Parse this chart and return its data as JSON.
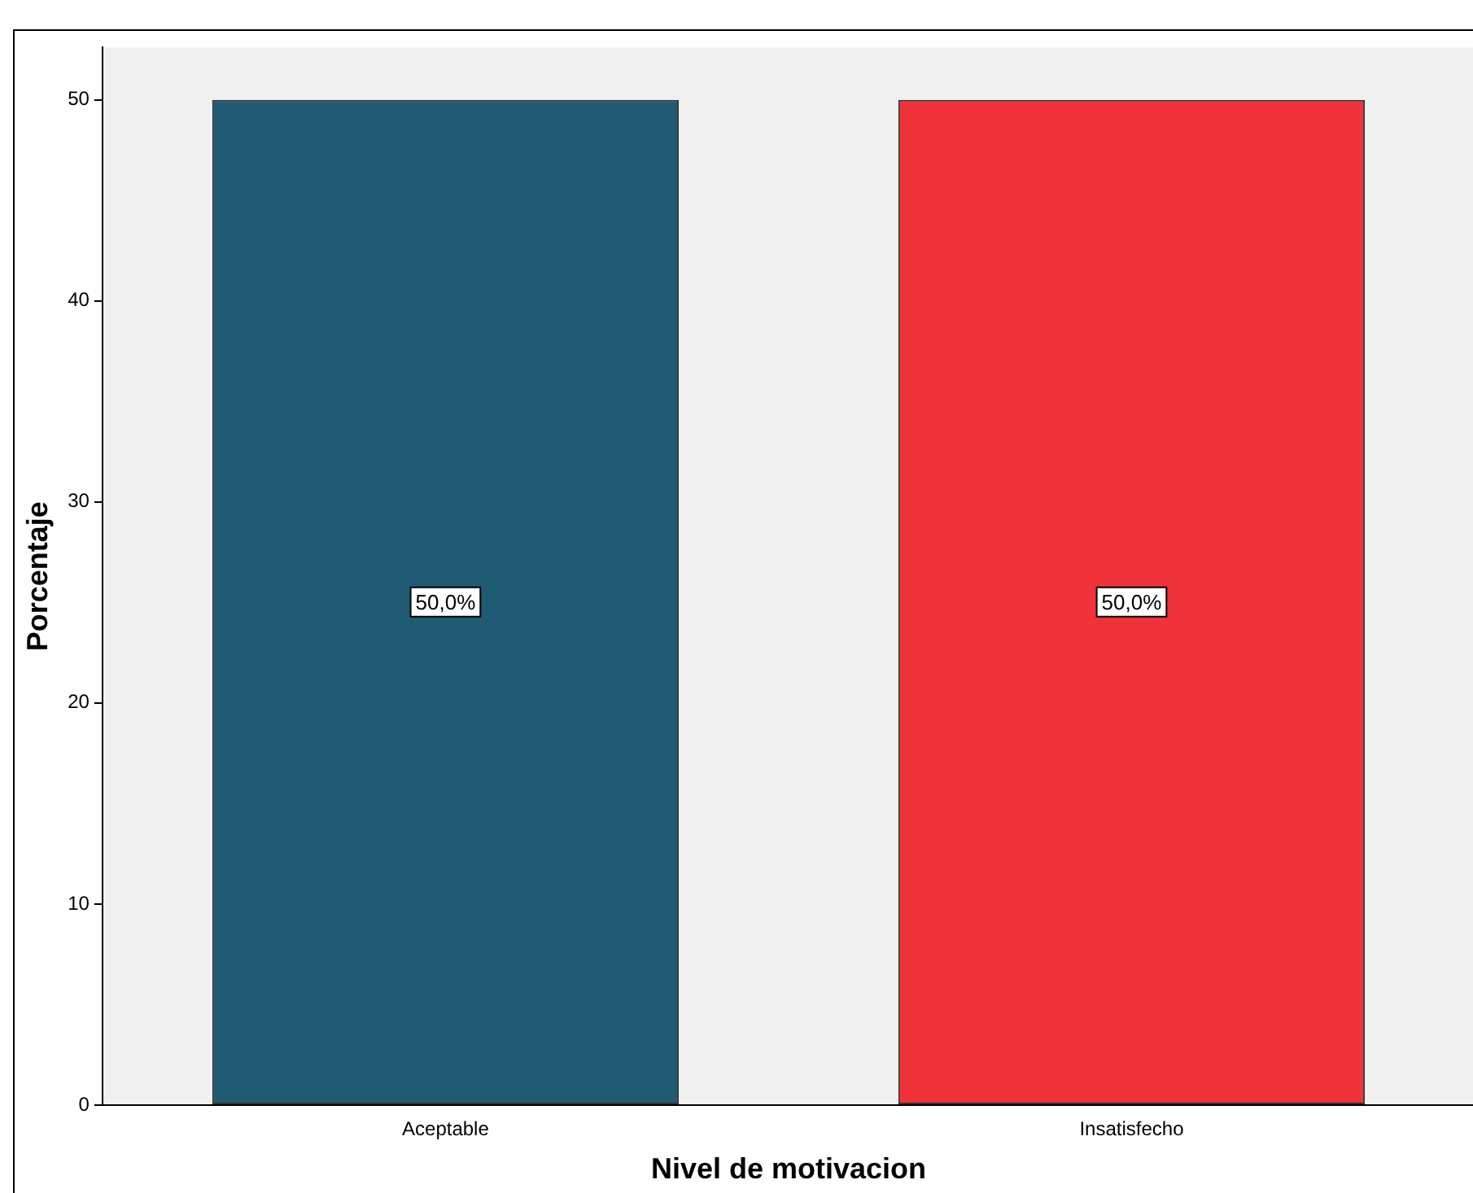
{
  "chart_data": {
    "type": "bar",
    "xlabel": "Nivel de motivacion",
    "ylabel": "Porcentaje",
    "categories": [
      "Aceptable",
      "Insatisfecho"
    ],
    "values": [
      50,
      50
    ],
    "colors": [
      "#1f5c73",
      "#f0323a"
    ],
    "value_labels": [
      "50,0%",
      "50,0%"
    ],
    "ylim": [
      0,
      52.6
    ],
    "yticks": [
      0,
      10,
      20,
      30,
      40,
      50
    ],
    "grid": false,
    "legend": false
  }
}
